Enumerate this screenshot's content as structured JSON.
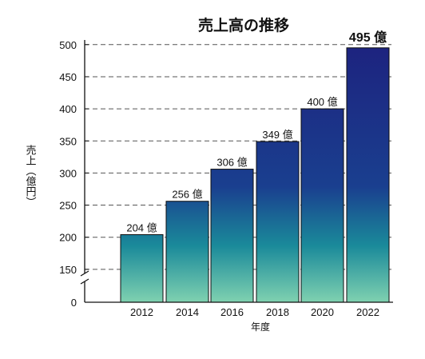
{
  "chart_data": {
    "type": "bar",
    "title": "売上高の推移",
    "xlabel": "年度",
    "ylabel": "売上（億円）",
    "categories": [
      "2012",
      "2014",
      "2016",
      "2018",
      "2020",
      "2022"
    ],
    "values": [
      204,
      256,
      306,
      349,
      400,
      495
    ],
    "data_labels": [
      "204 億",
      "256 億",
      "306 億",
      "349 億",
      "400 億",
      "495 億"
    ],
    "y_ticks": [
      "0",
      "150",
      "200",
      "250",
      "300",
      "350",
      "400",
      "450",
      "500"
    ],
    "ylim": [
      0,
      500
    ],
    "y_axis_broken": true,
    "grid": "dashed horizontal",
    "highlighted_category": "2022",
    "colors": {
      "bar_top": "#1d237f",
      "bar_mid": "#1a3f8f",
      "bar_teal": "#1a8a9a",
      "bar_bottom": "#7fd1b0",
      "grid": "#555555",
      "axis": "#111111"
    }
  }
}
